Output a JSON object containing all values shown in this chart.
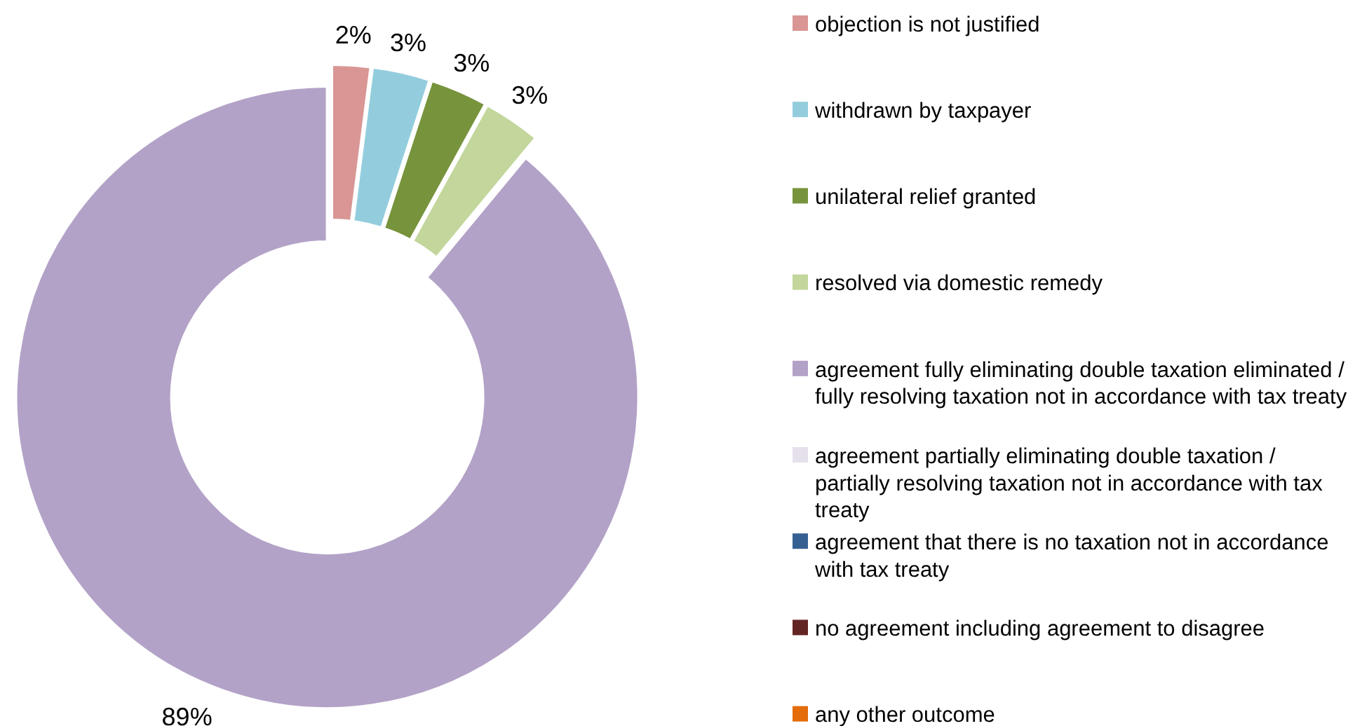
{
  "chart_data": {
    "type": "donut",
    "categories": [
      "objection is not justified",
      "withdrawn by taxpayer",
      "unilateral relief granted",
      "resolved via domestic remedy",
      "agreement fully eliminating double taxation eliminated / fully resolving taxation not in accordance with tax treaty",
      "agreement partially eliminating double taxation / partially resolving taxation not in accordance with tax treaty",
      "agreement that there is no taxation not in accordance with tax treaty",
      "no agreement including agreement to disagree",
      "any other outcome"
    ],
    "values": [
      2,
      3,
      3,
      3,
      89,
      0,
      0,
      0,
      0
    ],
    "value_labels": [
      "2%",
      "3%",
      "3%",
      "3%",
      "89%",
      null,
      null,
      null,
      null
    ],
    "colors": [
      "#d99694",
      "#93cddd",
      "#77933c",
      "#c3d69b",
      "#b3a2c7",
      "#e6e0ec",
      "#376092",
      "#632523",
      "#e46c0a"
    ],
    "legend": "right"
  }
}
